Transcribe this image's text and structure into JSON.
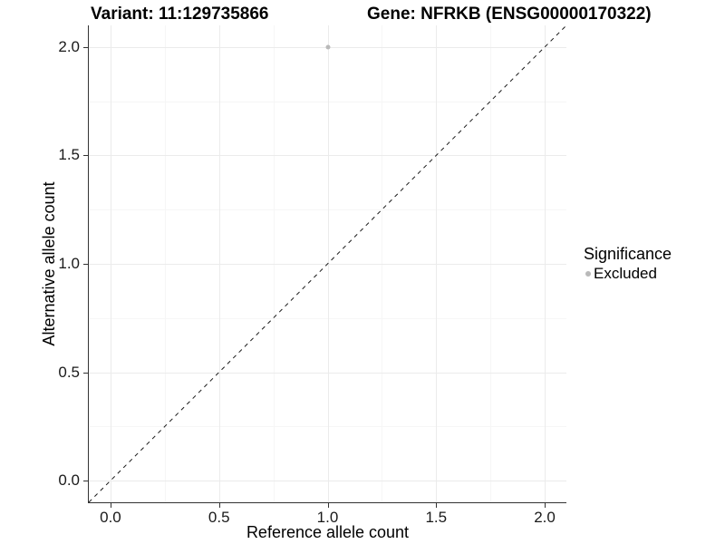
{
  "chart_data": {
    "type": "scatter",
    "titles": [
      "Variant: 11:129735866",
      "Gene: NFRKB (ENSG00000170322)"
    ],
    "xlabel": "Reference allele count",
    "ylabel": "Alternative allele count",
    "xlim": [
      -0.1,
      2.1
    ],
    "ylim": [
      -0.1,
      2.1
    ],
    "x_ticks": [
      0,
      0.5,
      1,
      1.5,
      2
    ],
    "x_tick_labels": [
      "0.0",
      "0.5",
      "1.0",
      "1.5",
      "2.0"
    ],
    "x_minor_ticks": [
      0.25,
      0.75,
      1.25,
      1.75
    ],
    "y_ticks": [
      0,
      0.5,
      1,
      1.5,
      2
    ],
    "y_tick_labels": [
      "0.0",
      "0.5",
      "1.0",
      "1.5",
      "2.0"
    ],
    "y_minor_ticks": [
      0.25,
      0.75,
      1.25,
      1.75
    ],
    "grid": "major+minor",
    "legend_position": "right",
    "series": [
      {
        "name": "Excluded",
        "marker": "circle",
        "color": "#b9b9b9",
        "points": [
          {
            "x": 1.0,
            "y": 2.0
          }
        ]
      }
    ],
    "reference_line": {
      "style": "dashed",
      "slope": 1,
      "intercept": 0,
      "color": "#1a1a1a",
      "description": "y = x identity line spanning full panel"
    },
    "legend": {
      "title": "Significance",
      "entries": [
        {
          "label": "Excluded",
          "color": "#b9b9b9",
          "marker": "circle"
        }
      ]
    }
  },
  "colors": {
    "background": "#ffffff",
    "grid_major": "#ebebeb",
    "grid_minor": "#f6f6f6",
    "axis": "#333333",
    "point": "#b9b9b9",
    "dashed_line": "#1a1a1a",
    "text": "#000000"
  }
}
